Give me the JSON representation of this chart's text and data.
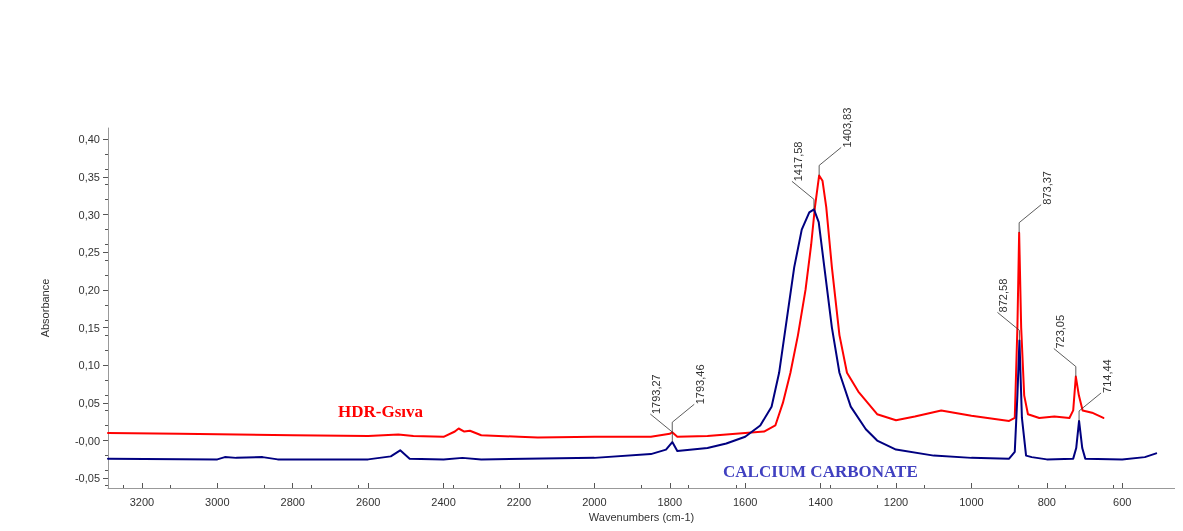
{
  "chart_data": {
    "type": "line",
    "xlabel": "Wavenumbers (cm-1)",
    "ylabel": "Absorbance",
    "xlim": [
      3290,
      460
    ],
    "xticks": [
      3200,
      3000,
      2800,
      2600,
      2400,
      2200,
      2000,
      1800,
      1600,
      1400,
      1200,
      1000,
      800,
      600
    ],
    "ylim": [
      -0.063,
      0.415
    ],
    "yticks": [
      {
        "value": -0.05,
        "label": "-0,05"
      },
      {
        "value": 0,
        "label": "-0,00"
      },
      {
        "value": 0.05,
        "label": "0,05"
      },
      {
        "value": 0.1,
        "label": "0,10"
      },
      {
        "value": 0.15,
        "label": "0,15"
      },
      {
        "value": 0.2,
        "label": "0,20"
      },
      {
        "value": 0.25,
        "label": "0,25"
      },
      {
        "value": 0.3,
        "label": "0,30"
      },
      {
        "value": 0.35,
        "label": "0,35"
      },
      {
        "value": 0.4,
        "label": "0,40"
      }
    ],
    "grid": false,
    "legend": false,
    "series": [
      {
        "name": "HDR-Gsıva",
        "color": "#ff0000",
        "x": [
          3290,
          3100,
          2800,
          2600,
          2520,
          2480,
          2400,
          2370,
          2360,
          2345,
          2330,
          2300,
          2200,
          2150,
          2000,
          1850,
          1800,
          1793.46,
          1780,
          1700,
          1600,
          1550,
          1520,
          1500,
          1480,
          1460,
          1440,
          1425,
          1415,
          1403.83,
          1395,
          1385,
          1370,
          1350,
          1330,
          1300,
          1250,
          1200,
          1150,
          1080,
          1000,
          900,
          885,
          878,
          873.37,
          868,
          860,
          850,
          820,
          780,
          740,
          730,
          723.05,
          715,
          705,
          680,
          650
        ],
        "values": [
          0.01,
          0.009,
          0.007,
          0.006,
          0.008,
          0.006,
          0.005,
          0.012,
          0.016,
          0.012,
          0.013,
          0.007,
          0.005,
          0.004,
          0.005,
          0.005,
          0.009,
          0.011,
          0.005,
          0.006,
          0.01,
          0.012,
          0.02,
          0.05,
          0.09,
          0.14,
          0.2,
          0.26,
          0.31,
          0.352,
          0.345,
          0.31,
          0.23,
          0.14,
          0.09,
          0.065,
          0.035,
          0.027,
          0.032,
          0.04,
          0.033,
          0.026,
          0.03,
          0.15,
          0.276,
          0.15,
          0.06,
          0.035,
          0.03,
          0.032,
          0.03,
          0.04,
          0.085,
          0.06,
          0.04,
          0.037,
          0.03
        ]
      },
      {
        "name": "CALCIUM CARBONATE",
        "color": "#000080",
        "x": [
          3290,
          3000,
          2980,
          2950,
          2880,
          2840,
          2600,
          2540,
          2515,
          2490,
          2400,
          2350,
          2300,
          2000,
          1850,
          1810,
          1793.27,
          1780,
          1700,
          1650,
          1600,
          1560,
          1530,
          1510,
          1490,
          1470,
          1450,
          1430,
          1417.58,
          1405,
          1390,
          1370,
          1350,
          1320,
          1280,
          1250,
          1200,
          1100,
          1000,
          900,
          885,
          878,
          872.58,
          866,
          855,
          840,
          800,
          730,
          722,
          714.44,
          706,
          698,
          600,
          540,
          510
        ],
        "values": [
          -0.024,
          -0.025,
          -0.022,
          -0.023,
          -0.022,
          -0.025,
          -0.025,
          -0.021,
          -0.013,
          -0.024,
          -0.025,
          -0.023,
          -0.025,
          -0.023,
          -0.018,
          -0.012,
          -0.002,
          -0.014,
          -0.01,
          -0.004,
          0.005,
          0.02,
          0.045,
          0.09,
          0.16,
          0.23,
          0.28,
          0.303,
          0.307,
          0.29,
          0.23,
          0.15,
          0.09,
          0.045,
          0.015,
          0.0,
          -0.012,
          -0.02,
          -0.023,
          -0.024,
          -0.015,
          0.06,
          0.133,
          0.03,
          -0.02,
          -0.022,
          -0.025,
          -0.024,
          -0.01,
          0.026,
          -0.01,
          -0.024,
          -0.025,
          -0.022,
          -0.017
        ]
      }
    ],
    "annotations": [
      {
        "text": "1793,27",
        "x": 1793.27,
        "y": -0.002
      },
      {
        "text": "1793,46",
        "x": 1793.46,
        "y": 0.011
      },
      {
        "text": "1417,58",
        "x": 1417.58,
        "y": 0.307
      },
      {
        "text": "1403,83",
        "x": 1403.83,
        "y": 0.352
      },
      {
        "text": "872,58",
        "x": 872.58,
        "y": 0.133
      },
      {
        "text": "873,37",
        "x": 873.37,
        "y": 0.276
      },
      {
        "text": "723,05",
        "x": 723.05,
        "y": 0.085
      },
      {
        "text": "714,44",
        "x": 714.44,
        "y": 0.026
      }
    ]
  }
}
